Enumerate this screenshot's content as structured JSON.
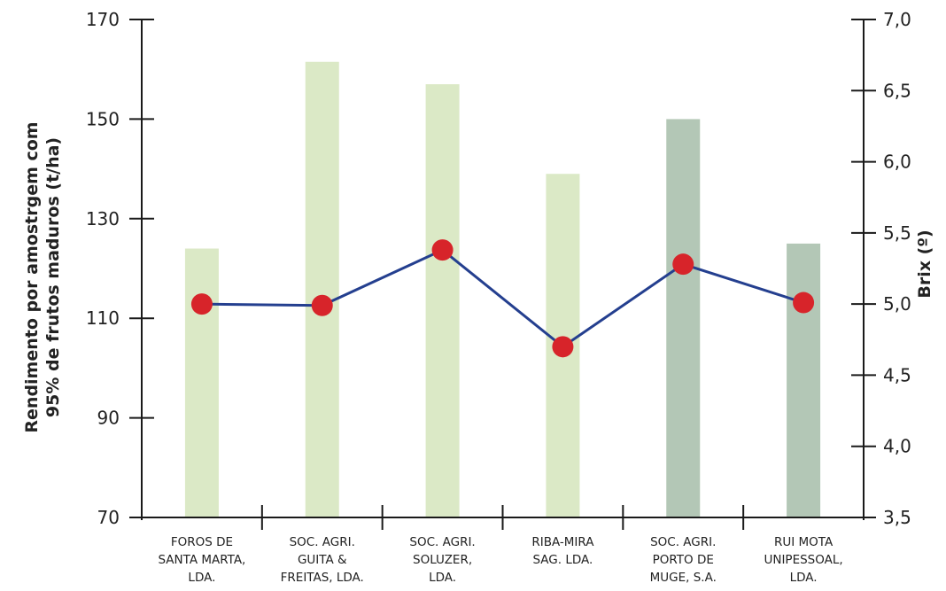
{
  "chart_data": {
    "type": "bar",
    "categories": [
      [
        "FOROS DE",
        "SANTA MARTA,",
        "LDA."
      ],
      [
        "SOC. AGRI.",
        "GUITA &",
        "FREITAS, LDA."
      ],
      [
        "SOC. AGRI.",
        "SOLUZER,",
        "LDA."
      ],
      [
        "RIBA-MIRA",
        "SAG. LDA."
      ],
      [
        "SOC. AGRI.",
        "PORTO DE",
        "MUGE, S.A."
      ],
      [
        "RUI MOTA",
        "UNIPESSOAL,",
        "LDA."
      ]
    ],
    "y_left": {
      "label_lines": [
        "Rendimento por amostrgem com",
        "95% de frutos maduros (t/ha)"
      ],
      "ylim": [
        70,
        170
      ],
      "ticks": [
        "170",
        "150",
        "130",
        "110",
        "90",
        "70"
      ],
      "tick_values": [
        170,
        150,
        130,
        110,
        90,
        70
      ]
    },
    "y_right": {
      "label": "Brix (º)",
      "ylim": [
        3.5,
        7.0
      ],
      "ticks": [
        "7,0",
        "6,5",
        "6,0",
        "5,5",
        "5,0",
        "4,5",
        "4,0",
        "3,5"
      ],
      "tick_values": [
        7.0,
        6.5,
        6.0,
        5.5,
        5.0,
        4.5,
        4.0,
        3.5
      ]
    },
    "series": [
      {
        "type": "bar",
        "axis": "left",
        "values": [
          124,
          161.5,
          157,
          139,
          150,
          125
        ],
        "colors": [
          "#dbe9c6",
          "#dbe9c6",
          "#dbe9c6",
          "#dbe9c6",
          "#b3c7b6",
          "#b3c7b6"
        ]
      },
      {
        "type": "line",
        "axis": "right",
        "values": [
          5.0,
          4.99,
          5.38,
          4.7,
          5.28,
          5.01
        ],
        "line_color": "#243f8f",
        "marker_color": "#d7242a"
      }
    ],
    "grid": false,
    "legend": "none"
  }
}
